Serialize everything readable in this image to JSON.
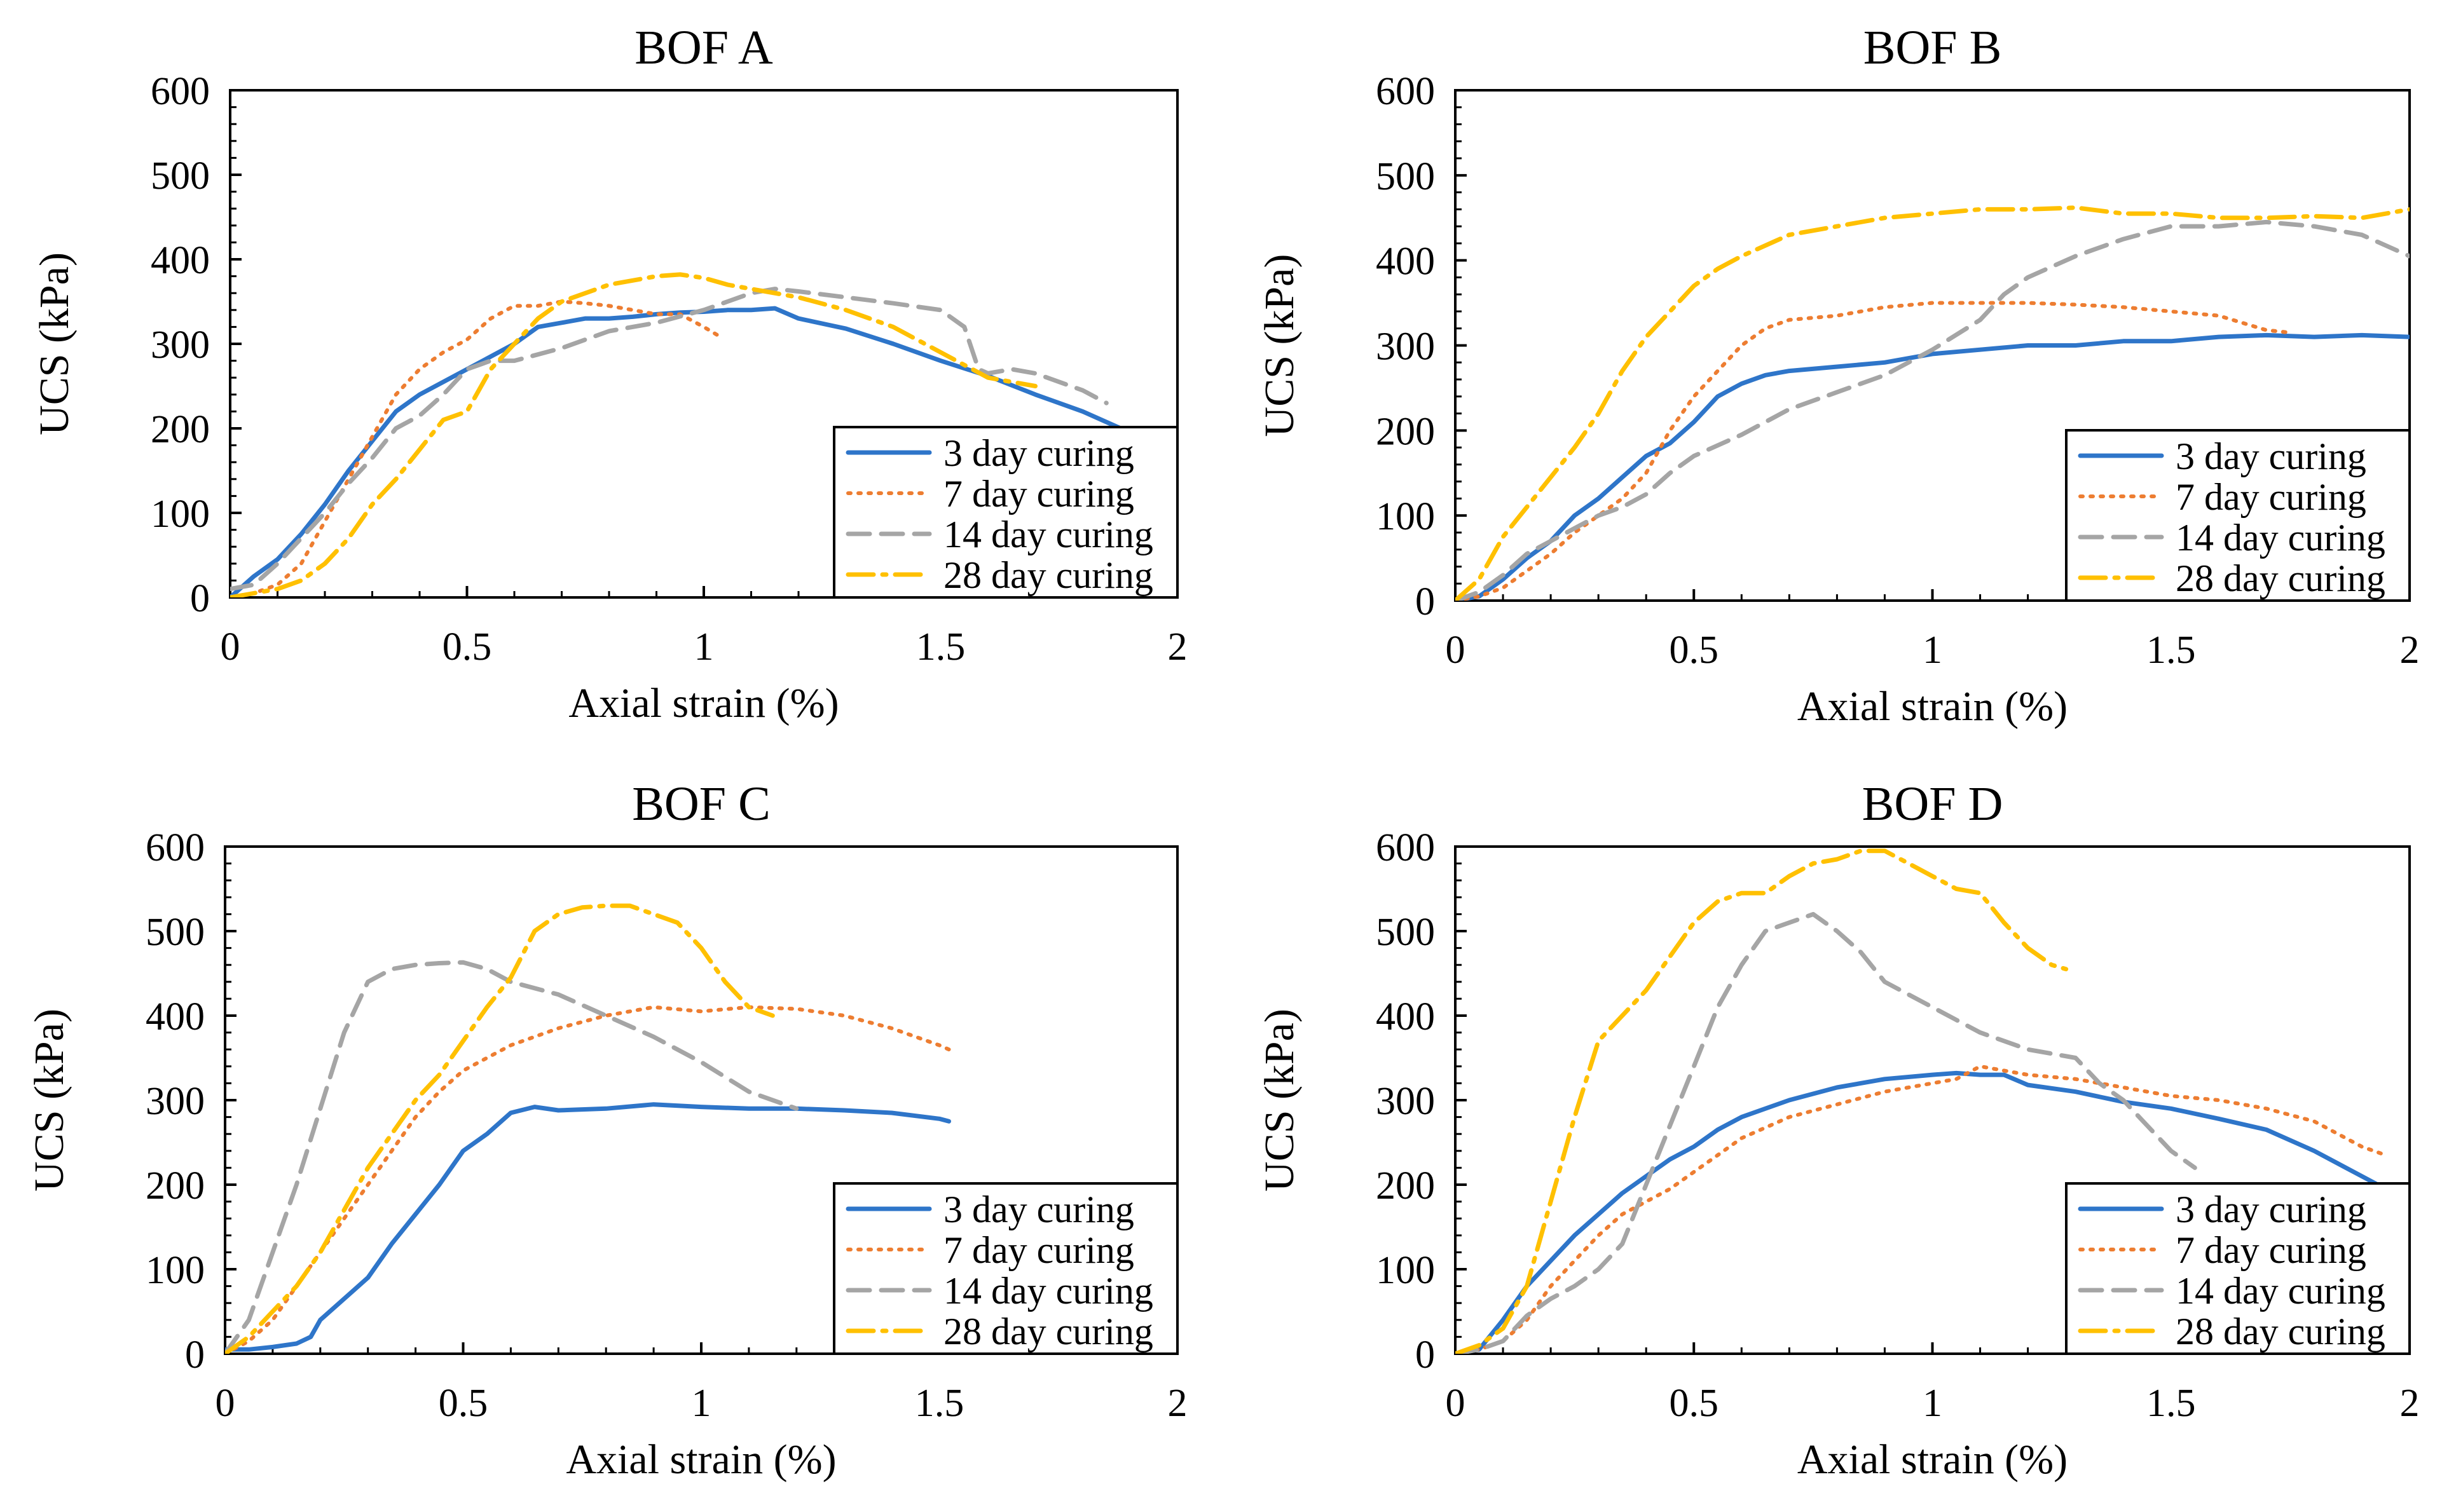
{
  "colors": {
    "s3": "#2E75C9",
    "s7": "#ED7D31",
    "s14": "#A5A5A5",
    "s28": "#FFC000"
  },
  "chart_data": [
    {
      "type": "line",
      "title": "BOF A",
      "xlabel": "Axial strain (%)",
      "ylabel": "UCS (kPa)",
      "xlim": [
        0,
        2
      ],
      "ylim": [
        0,
        600
      ],
      "xticks": [
        0,
        0.5,
        1,
        1.5,
        2
      ],
      "xtick_labels": [
        "0",
        "0.5",
        "1",
        "1.5",
        "2"
      ],
      "yticks": [
        0,
        100,
        200,
        300,
        400,
        500,
        600
      ],
      "ytick_labels": [
        "0",
        "100",
        "200",
        "300",
        "400",
        "500",
        "600"
      ],
      "legend_position": "bottom-right",
      "series": [
        {
          "name": "3 day curing",
          "key": "s3",
          "x": [
            0,
            0.05,
            0.1,
            0.15,
            0.2,
            0.25,
            0.3,
            0.35,
            0.4,
            0.45,
            0.5,
            0.55,
            0.6,
            0.65,
            0.7,
            0.75,
            0.8,
            0.85,
            0.9,
            0.95,
            1.0,
            1.05,
            1.1,
            1.15,
            1.2,
            1.3,
            1.4,
            1.5,
            1.6,
            1.7,
            1.8,
            1.88
          ],
          "y": [
            0,
            25,
            45,
            75,
            110,
            150,
            185,
            220,
            240,
            255,
            270,
            285,
            300,
            320,
            325,
            330,
            330,
            332,
            335,
            337,
            338,
            340,
            340,
            342,
            330,
            318,
            300,
            280,
            262,
            240,
            220,
            200
          ]
        },
        {
          "name": "7 day curing",
          "key": "s7",
          "x": [
            0,
            0.05,
            0.1,
            0.15,
            0.2,
            0.25,
            0.3,
            0.35,
            0.4,
            0.45,
            0.5,
            0.55,
            0.6,
            0.65,
            0.7,
            0.75,
            0.8,
            0.85,
            0.9,
            0.95,
            1.0,
            1.03
          ],
          "y": [
            0,
            5,
            15,
            40,
            90,
            140,
            190,
            240,
            270,
            290,
            305,
            330,
            345,
            345,
            350,
            348,
            345,
            340,
            335,
            335,
            320,
            310
          ]
        },
        {
          "name": "14 day curing",
          "key": "s14",
          "x": [
            0,
            0.05,
            0.1,
            0.15,
            0.2,
            0.25,
            0.3,
            0.35,
            0.4,
            0.45,
            0.5,
            0.55,
            0.6,
            0.7,
            0.8,
            0.9,
            1.0,
            1.05,
            1.1,
            1.15,
            1.2,
            1.3,
            1.4,
            1.5,
            1.55,
            1.58,
            1.6,
            1.65,
            1.7,
            1.8,
            1.85
          ],
          "y": [
            10,
            15,
            40,
            70,
            100,
            135,
            165,
            200,
            215,
            240,
            270,
            280,
            280,
            295,
            315,
            325,
            340,
            350,
            360,
            365,
            362,
            355,
            348,
            340,
            320,
            270,
            265,
            270,
            265,
            245,
            230
          ]
        },
        {
          "name": "28 day curing",
          "key": "s28",
          "x": [
            0,
            0.05,
            0.1,
            0.15,
            0.2,
            0.25,
            0.3,
            0.35,
            0.4,
            0.45,
            0.5,
            0.55,
            0.6,
            0.65,
            0.7,
            0.8,
            0.9,
            0.95,
            1.0,
            1.05,
            1.1,
            1.2,
            1.3,
            1.4,
            1.5,
            1.6,
            1.65,
            1.7
          ],
          "y": [
            0,
            5,
            10,
            20,
            40,
            70,
            110,
            140,
            175,
            210,
            220,
            270,
            300,
            330,
            350,
            370,
            380,
            382,
            378,
            370,
            365,
            355,
            340,
            320,
            290,
            260,
            255,
            250
          ]
        }
      ]
    },
    {
      "type": "line",
      "title": "BOF B",
      "xlabel": "Axial strain (%)",
      "ylabel": "UCS (kPa)",
      "xlim": [
        0,
        2
      ],
      "ylim": [
        0,
        600
      ],
      "xticks": [
        0,
        0.5,
        1,
        1.5,
        2
      ],
      "xtick_labels": [
        "0",
        "0.5",
        "1",
        "1.5",
        "2"
      ],
      "yticks": [
        0,
        100,
        200,
        300,
        400,
        500,
        600
      ],
      "ytick_labels": [
        "0",
        "100",
        "200",
        "300",
        "400",
        "500",
        "600"
      ],
      "legend_position": "bottom-right",
      "series": [
        {
          "name": "3 day curing",
          "key": "s3",
          "x": [
            0,
            0.05,
            0.1,
            0.15,
            0.2,
            0.25,
            0.3,
            0.35,
            0.4,
            0.45,
            0.5,
            0.55,
            0.6,
            0.65,
            0.7,
            0.8,
            0.9,
            1.0,
            1.1,
            1.2,
            1.3,
            1.4,
            1.5,
            1.6,
            1.7,
            1.8,
            1.9,
            2.0
          ],
          "y": [
            0,
            5,
            25,
            50,
            70,
            100,
            120,
            145,
            170,
            185,
            210,
            240,
            255,
            265,
            270,
            275,
            280,
            290,
            295,
            300,
            300,
            305,
            305,
            310,
            312,
            310,
            312,
            310
          ]
        },
        {
          "name": "7 day curing",
          "key": "s7",
          "x": [
            0,
            0.05,
            0.1,
            0.15,
            0.2,
            0.25,
            0.3,
            0.35,
            0.4,
            0.45,
            0.5,
            0.55,
            0.6,
            0.65,
            0.7,
            0.8,
            0.9,
            1.0,
            1.1,
            1.2,
            1.3,
            1.4,
            1.5,
            1.6,
            1.7,
            1.75
          ],
          "y": [
            0,
            5,
            15,
            35,
            55,
            80,
            100,
            120,
            150,
            200,
            240,
            270,
            300,
            320,
            330,
            335,
            345,
            350,
            350,
            350,
            348,
            345,
            340,
            335,
            318,
            315
          ]
        },
        {
          "name": "14 day curing",
          "key": "s14",
          "x": [
            0,
            0.05,
            0.1,
            0.15,
            0.2,
            0.25,
            0.3,
            0.35,
            0.4,
            0.45,
            0.5,
            0.6,
            0.7,
            0.8,
            0.9,
            1.0,
            1.1,
            1.15,
            1.2,
            1.3,
            1.4,
            1.5,
            1.6,
            1.7,
            1.8,
            1.9,
            2.0
          ],
          "y": [
            0,
            10,
            30,
            55,
            70,
            85,
            100,
            110,
            125,
            150,
            170,
            195,
            225,
            245,
            265,
            295,
            330,
            360,
            380,
            405,
            425,
            440,
            440,
            445,
            440,
            430,
            405
          ]
        },
        {
          "name": "28 day curing",
          "key": "s28",
          "x": [
            0,
            0.05,
            0.1,
            0.15,
            0.2,
            0.25,
            0.3,
            0.35,
            0.4,
            0.45,
            0.5,
            0.55,
            0.6,
            0.7,
            0.8,
            0.9,
            1.0,
            1.1,
            1.2,
            1.3,
            1.4,
            1.5,
            1.6,
            1.7,
            1.8,
            1.9,
            2.0
          ],
          "y": [
            0,
            25,
            75,
            110,
            145,
            180,
            220,
            270,
            310,
            340,
            370,
            390,
            405,
            430,
            440,
            450,
            455,
            460,
            460,
            462,
            455,
            455,
            450,
            450,
            452,
            450,
            460
          ]
        }
      ]
    },
    {
      "type": "line",
      "title": "BOF C",
      "xlabel": "Axial strain (%)",
      "ylabel": "UCS (kPa)",
      "xlim": [
        0,
        2
      ],
      "ylim": [
        0,
        600
      ],
      "xticks": [
        0,
        0.5,
        1,
        1.5,
        2
      ],
      "xtick_labels": [
        "0",
        "0.5",
        "1",
        "1.5",
        "2"
      ],
      "yticks": [
        0,
        100,
        200,
        300,
        400,
        500,
        600
      ],
      "ytick_labels": [
        "0",
        "100",
        "200",
        "300",
        "400",
        "500",
        "600"
      ],
      "legend_position": "bottom-right",
      "series": [
        {
          "name": "3 day curing",
          "key": "s3",
          "x": [
            0,
            0.05,
            0.1,
            0.15,
            0.18,
            0.2,
            0.25,
            0.3,
            0.35,
            0.4,
            0.45,
            0.5,
            0.55,
            0.6,
            0.65,
            0.7,
            0.8,
            0.9,
            1.0,
            1.1,
            1.2,
            1.3,
            1.4,
            1.5,
            1.52
          ],
          "y": [
            5,
            5,
            8,
            12,
            20,
            40,
            65,
            90,
            130,
            165,
            200,
            240,
            260,
            285,
            292,
            288,
            290,
            295,
            292,
            290,
            290,
            288,
            285,
            278,
            275
          ]
        },
        {
          "name": "7 day curing",
          "key": "s7",
          "x": [
            0,
            0.05,
            0.1,
            0.15,
            0.2,
            0.25,
            0.3,
            0.35,
            0.4,
            0.45,
            0.5,
            0.55,
            0.6,
            0.7,
            0.8,
            0.9,
            1.0,
            1.1,
            1.2,
            1.3,
            1.4,
            1.5,
            1.52
          ],
          "y": [
            0,
            15,
            40,
            80,
            120,
            160,
            200,
            240,
            280,
            310,
            335,
            350,
            365,
            385,
            400,
            410,
            405,
            410,
            408,
            400,
            385,
            365,
            360
          ]
        },
        {
          "name": "14 day curing",
          "key": "s14",
          "x": [
            0,
            0.05,
            0.1,
            0.15,
            0.2,
            0.25,
            0.3,
            0.35,
            0.4,
            0.45,
            0.5,
            0.55,
            0.6,
            0.7,
            0.8,
            0.9,
            1.0,
            1.1,
            1.2
          ],
          "y": [
            0,
            40,
            120,
            200,
            290,
            380,
            440,
            455,
            460,
            462,
            463,
            455,
            440,
            425,
            400,
            375,
            345,
            310,
            290
          ]
        },
        {
          "name": "28 day curing",
          "key": "s28",
          "x": [
            0,
            0.05,
            0.1,
            0.15,
            0.2,
            0.25,
            0.3,
            0.35,
            0.4,
            0.45,
            0.5,
            0.55,
            0.6,
            0.65,
            0.7,
            0.75,
            0.8,
            0.85,
            0.9,
            0.95,
            1.0,
            1.05,
            1.1,
            1.15
          ],
          "y": [
            0,
            20,
            50,
            80,
            120,
            170,
            220,
            260,
            300,
            330,
            370,
            410,
            445,
            500,
            520,
            528,
            530,
            530,
            520,
            510,
            480,
            440,
            410,
            400
          ]
        }
      ]
    },
    {
      "type": "line",
      "title": "BOF D",
      "xlabel": "Axial strain (%)",
      "ylabel": "UCS (kPa)",
      "xlim": [
        0,
        2
      ],
      "ylim": [
        0,
        600
      ],
      "xticks": [
        0,
        0.5,
        1,
        1.5,
        2
      ],
      "xtick_labels": [
        "0",
        "0.5",
        "1",
        "1.5",
        "2"
      ],
      "yticks": [
        0,
        100,
        200,
        300,
        400,
        500,
        600
      ],
      "ytick_labels": [
        "0",
        "100",
        "200",
        "300",
        "400",
        "500",
        "600"
      ],
      "legend_position": "bottom-right",
      "series": [
        {
          "name": "3 day curing",
          "key": "s3",
          "x": [
            0,
            0.05,
            0.1,
            0.15,
            0.2,
            0.25,
            0.3,
            0.35,
            0.4,
            0.45,
            0.5,
            0.55,
            0.6,
            0.7,
            0.8,
            0.9,
            1.0,
            1.05,
            1.1,
            1.15,
            1.2,
            1.3,
            1.4,
            1.5,
            1.6,
            1.7,
            1.8,
            1.9,
            1.95
          ],
          "y": [
            0,
            5,
            40,
            80,
            110,
            140,
            165,
            190,
            210,
            230,
            245,
            265,
            280,
            300,
            315,
            325,
            330,
            332,
            330,
            330,
            318,
            310,
            298,
            290,
            278,
            265,
            240,
            210,
            195
          ]
        },
        {
          "name": "7 day curing",
          "key": "s7",
          "x": [
            0,
            0.05,
            0.1,
            0.15,
            0.2,
            0.25,
            0.3,
            0.35,
            0.4,
            0.45,
            0.5,
            0.55,
            0.6,
            0.7,
            0.8,
            0.9,
            1.0,
            1.05,
            1.1,
            1.15,
            1.2,
            1.3,
            1.4,
            1.5,
            1.6,
            1.7,
            1.8,
            1.9,
            1.95
          ],
          "y": [
            0,
            5,
            15,
            40,
            80,
            110,
            140,
            165,
            180,
            195,
            215,
            235,
            255,
            280,
            295,
            310,
            320,
            325,
            340,
            335,
            330,
            325,
            315,
            305,
            300,
            290,
            275,
            245,
            235
          ]
        },
        {
          "name": "14 day curing",
          "key": "s14",
          "x": [
            0,
            0.05,
            0.1,
            0.15,
            0.2,
            0.25,
            0.3,
            0.35,
            0.4,
            0.45,
            0.5,
            0.55,
            0.6,
            0.65,
            0.7,
            0.75,
            0.8,
            0.85,
            0.9,
            0.95,
            1.0,
            1.05,
            1.1,
            1.2,
            1.3,
            1.35,
            1.4,
            1.45,
            1.5,
            1.55
          ],
          "y": [
            0,
            5,
            15,
            45,
            65,
            80,
            100,
            130,
            200,
            270,
            340,
            410,
            460,
            500,
            510,
            520,
            500,
            475,
            440,
            425,
            410,
            395,
            380,
            360,
            350,
            320,
            300,
            270,
            240,
            220
          ]
        },
        {
          "name": "28 day curing",
          "key": "s28",
          "x": [
            0,
            0.05,
            0.1,
            0.15,
            0.2,
            0.25,
            0.3,
            0.35,
            0.4,
            0.45,
            0.5,
            0.55,
            0.6,
            0.65,
            0.7,
            0.75,
            0.8,
            0.85,
            0.9,
            0.95,
            1.0,
            1.05,
            1.1,
            1.15,
            1.2,
            1.25,
            1.28
          ],
          "y": [
            0,
            10,
            30,
            80,
            180,
            280,
            370,
            400,
            430,
            470,
            510,
            535,
            545,
            545,
            565,
            580,
            585,
            595,
            595,
            580,
            565,
            550,
            545,
            510,
            480,
            460,
            455
          ]
        }
      ]
    }
  ]
}
